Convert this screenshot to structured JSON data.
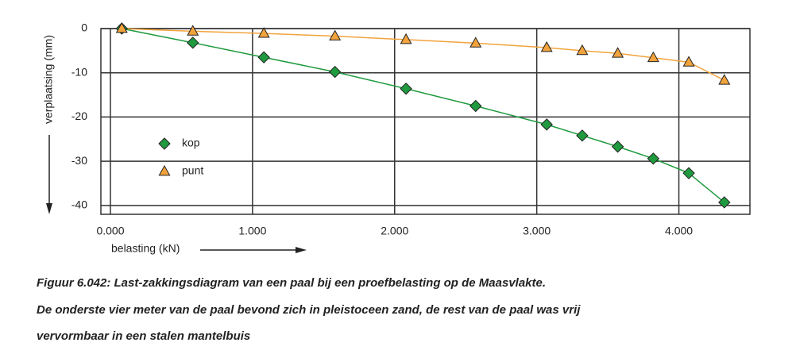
{
  "chart_data": {
    "type": "line",
    "x_label": "belasting (kN)",
    "y_label": "verplaatsing (mm)",
    "x": [
      80,
      580,
      1080,
      1580,
      2080,
      2570,
      3070,
      3320,
      3570,
      3820,
      4070,
      4320
    ],
    "series": [
      {
        "name": "kop",
        "color": "#1f9a3e",
        "marker": "diamond",
        "values": [
          0,
          -3.2,
          -6.5,
          -9.8,
          -13.6,
          -17.5,
          -21.7,
          -24.2,
          -26.7,
          -29.4,
          -32.7,
          -39.3
        ]
      },
      {
        "name": "punt",
        "color": "#f2a33c",
        "marker": "triangle",
        "values": [
          0,
          -0.6,
          -1.1,
          -1.7,
          -2.5,
          -3.3,
          -4.3,
          -5.0,
          -5.6,
          -6.6,
          -7.6,
          -11.7
        ]
      }
    ],
    "xlim": [
      -67,
      4500
    ],
    "ylim": [
      -42,
      0
    ],
    "xticks": [
      {
        "value": 0,
        "label": "0.000"
      },
      {
        "value": 1000,
        "label": "1.000"
      },
      {
        "value": 2000,
        "label": "2.000"
      },
      {
        "value": 3000,
        "label": "3.000"
      },
      {
        "value": 4000,
        "label": "4.000"
      }
    ],
    "yticks": [
      0,
      -10,
      -20,
      -30,
      -40
    ],
    "grid": true,
    "legend": "lower-left"
  },
  "caption": {
    "lines": [
      "Figuur 6.042: Last-zakkingsdiagram van een paal bij een proefbelasting op de Maasvlakte.",
      "De onderste vier meter van de paal bevond zich in pleistoceen zand, de rest van de paal was vrij",
      "vervormbaar in een stalen mantelbuis"
    ]
  }
}
